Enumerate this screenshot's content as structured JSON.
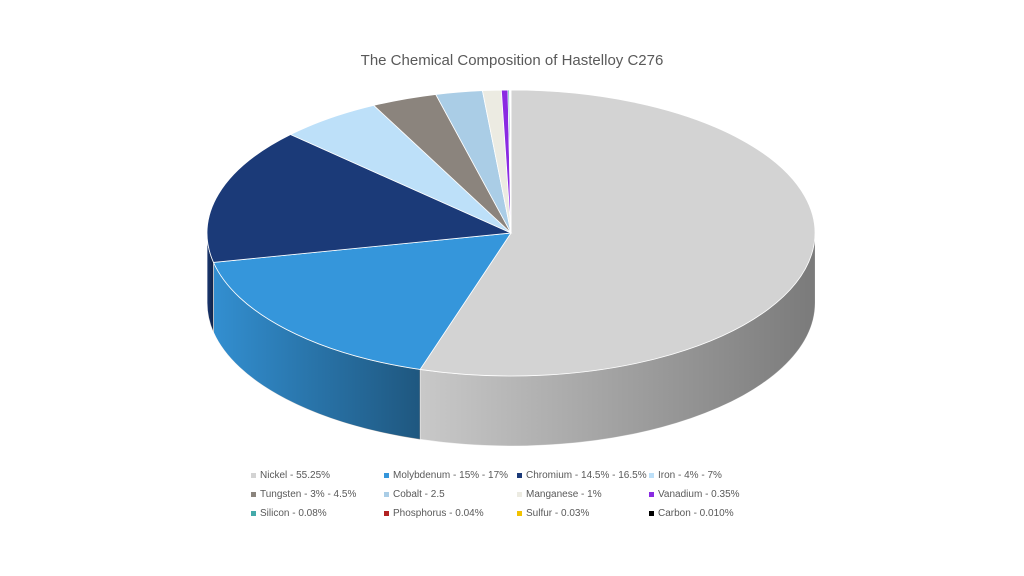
{
  "chart_data": {
    "type": "pie",
    "title": "The Chemical Composition of Hastelloy C276",
    "legend_position": "bottom",
    "slices": [
      {
        "label": "Nickel - 55.25%",
        "value": 55.25,
        "color": "#d3d3d3"
      },
      {
        "label": "Molybdenum - 15% - 17%",
        "value": 17,
        "color": "#3596db"
      },
      {
        "label": "Chromium - 14.5% - 16.5%",
        "value": 15.5,
        "color": "#1b3a78"
      },
      {
        "label": "Iron - 4% - 7%",
        "value": 5.5,
        "color": "#bde0f9"
      },
      {
        "label": "Tungsten - 3% - 4.5%",
        "value": 3.5,
        "color": "#8b847d"
      },
      {
        "label": "Cobalt - 2.5",
        "value": 2.5,
        "color": "#aacde6"
      },
      {
        "label": "Manganese - 1%",
        "value": 1,
        "color": "#ecebe2"
      },
      {
        "label": "Vanadium - 0.35%",
        "value": 0.35,
        "color": "#8a2be2"
      },
      {
        "label": "Silicon - 0.08%",
        "value": 0.08,
        "color": "#44aaaa"
      },
      {
        "label": "Phosphorus - 0.04%",
        "value": 0.04,
        "color": "#b22222"
      },
      {
        "label": "Sulfur - 0.03%",
        "value": 0.03,
        "color": "#f2c200"
      },
      {
        "label": "Carbon - 0.010%",
        "value": 0.01,
        "color": "#000000"
      }
    ]
  }
}
